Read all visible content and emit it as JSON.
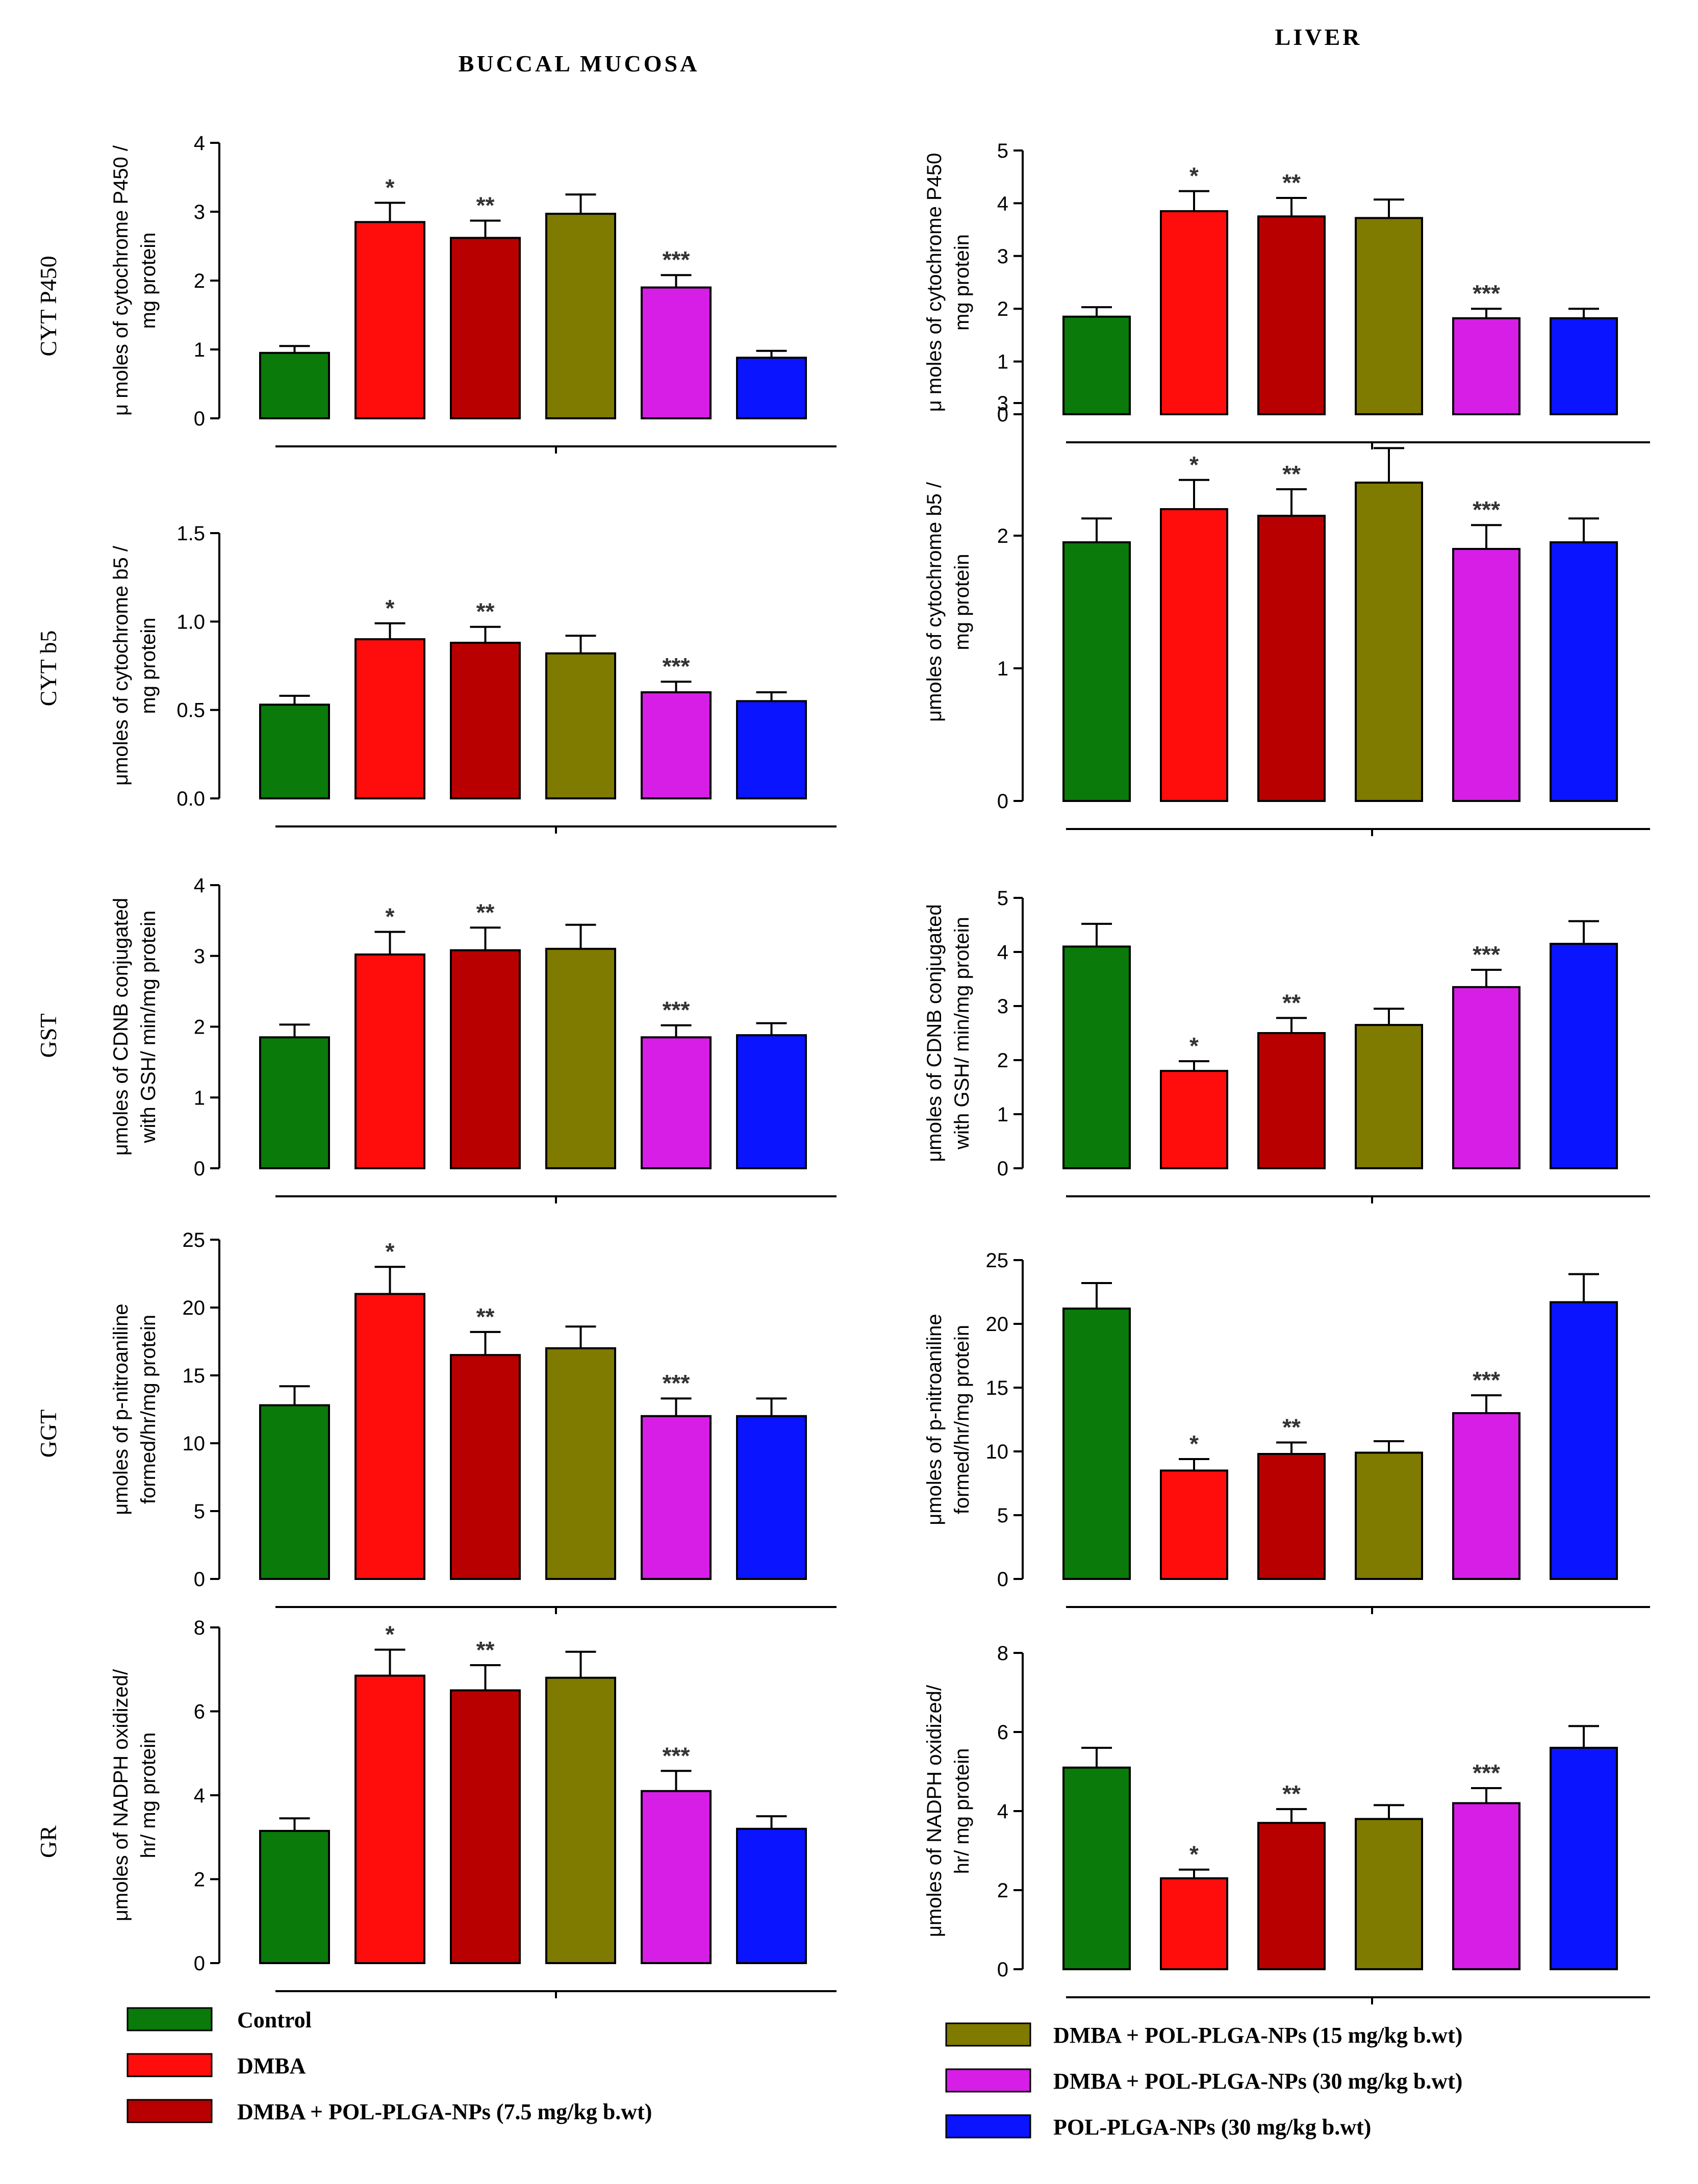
{
  "column_titles": [
    "BUCCAL MUCOSA",
    "LIVER"
  ],
  "groups": [
    "Control",
    "DMBA",
    "DMBA + POL-PLGA-NPs (7.5 mg/kg b.wt)",
    "DMBA + POL-PLGA-NPs (15 mg/kg b.wt)",
    "DMBA + POL-PLGA-NPs (30 mg/kg b.wt)",
    "POL-PLGA-NPs (30 mg/kg b.wt)"
  ],
  "colors": [
    "#0a7a0a",
    "#ff0d0d",
    "#b80000",
    "#7f7a00",
    "#d61ee6",
    "#0a14ff"
  ],
  "legend": [
    {
      "label": "Control",
      "color": "#0a7a0a"
    },
    {
      "label": "DMBA",
      "color": "#ff0d0d"
    },
    {
      "label": "DMBA + POL-PLGA-NPs (7.5 mg/kg b.wt)",
      "color": "#b80000"
    },
    {
      "label": "DMBA + POL-PLGA-NPs (15 mg/kg b.wt)",
      "color": "#7f7a00"
    },
    {
      "label": "DMBA + POL-PLGA-NPs (30 mg/kg b.wt)",
      "color": "#d61ee6"
    },
    {
      "label": "POL-PLGA-NPs (30 mg/kg b.wt)",
      "color": "#0a14ff"
    }
  ],
  "chart_data": [
    {
      "type": "bar",
      "row": 0,
      "col": 0,
      "row_label": "CYT P450",
      "ylabel": [
        "μ moles of cytochrome P450 /",
        "mg protein"
      ],
      "ylim": [
        0,
        4
      ],
      "ticks": [
        "0",
        "1",
        "2",
        "3",
        "4"
      ],
      "values": [
        0.95,
        2.85,
        2.62,
        2.97,
        1.9,
        0.88
      ],
      "errors": [
        0.1,
        0.28,
        0.25,
        0.28,
        0.18,
        0.1
      ],
      "annotations": [
        "",
        "*",
        "**",
        "",
        "***",
        ""
      ]
    },
    {
      "type": "bar",
      "row": 0,
      "col": 1,
      "row_label": "CYT P450",
      "ylabel": [
        "μ moles of cytochrome P450",
        "mg protein"
      ],
      "ylim": [
        0,
        5
      ],
      "ticks": [
        "0",
        "1",
        "2",
        "3",
        "4",
        "5"
      ],
      "values": [
        1.85,
        3.85,
        3.75,
        3.72,
        1.82,
        1.82
      ],
      "errors": [
        0.18,
        0.38,
        0.35,
        0.35,
        0.18,
        0.18
      ],
      "annotations": [
        "",
        "*",
        "**",
        "",
        "***",
        ""
      ]
    },
    {
      "type": "bar",
      "row": 1,
      "col": 0,
      "row_label": "CYT b5",
      "ylabel": [
        "μmoles of cytochrome b5 /",
        "mg protein"
      ],
      "ylim": [
        0,
        1.5
      ],
      "ticks": [
        "0.0",
        "0.5",
        "1.0",
        "1.5"
      ],
      "values": [
        0.53,
        0.9,
        0.88,
        0.82,
        0.6,
        0.55
      ],
      "errors": [
        0.05,
        0.09,
        0.09,
        0.1,
        0.06,
        0.05
      ],
      "annotations": [
        "",
        "*",
        "**",
        "",
        "***",
        ""
      ]
    },
    {
      "type": "bar",
      "row": 1,
      "col": 1,
      "row_label": "CYT b5",
      "ylabel": [
        "μmoles of cytochrome b5 /",
        "mg protein"
      ],
      "ylim": [
        0,
        3
      ],
      "ticks": [
        "0",
        "1",
        "2",
        "3"
      ],
      "values": [
        1.95,
        2.2,
        2.15,
        2.4,
        1.9,
        1.95
      ],
      "errors": [
        0.18,
        0.22,
        0.2,
        0.26,
        0.18,
        0.18
      ],
      "annotations": [
        "",
        "*",
        "**",
        "",
        "***",
        ""
      ]
    },
    {
      "type": "bar",
      "row": 2,
      "col": 0,
      "row_label": "GST",
      "ylabel": [
        "μmoles of CDNB conjugated",
        "with GSH/ min/mg protein"
      ],
      "ylim": [
        0,
        4
      ],
      "ticks": [
        "0",
        "1",
        "2",
        "3",
        "4"
      ],
      "values": [
        1.85,
        3.02,
        3.08,
        3.1,
        1.85,
        1.88
      ],
      "errors": [
        0.18,
        0.32,
        0.32,
        0.34,
        0.17,
        0.17
      ],
      "annotations": [
        "",
        "*",
        "**",
        "",
        "***",
        ""
      ]
    },
    {
      "type": "bar",
      "row": 2,
      "col": 1,
      "row_label": "GST",
      "ylabel": [
        "μmoles of CDNB conjugated",
        "with GSH/ min/mg protein"
      ],
      "ylim": [
        0,
        5
      ],
      "ticks": [
        "0",
        "1",
        "2",
        "3",
        "4",
        "5"
      ],
      "values": [
        4.1,
        1.8,
        2.5,
        2.65,
        3.35,
        4.15
      ],
      "errors": [
        0.42,
        0.18,
        0.28,
        0.3,
        0.32,
        0.42
      ],
      "annotations": [
        "",
        "*",
        "**",
        "",
        "***",
        ""
      ]
    },
    {
      "type": "bar",
      "row": 3,
      "col": 0,
      "row_label": "GGT",
      "ylabel": [
        "μmoles of p-nitroaniline",
        "formed/hr/mg protein"
      ],
      "ylim": [
        0,
        25
      ],
      "ticks": [
        "0",
        "5",
        "10",
        "15",
        "20",
        "25"
      ],
      "values": [
        12.8,
        21.0,
        16.5,
        17.0,
        12.0,
        12.0
      ],
      "errors": [
        1.4,
        2.0,
        1.7,
        1.6,
        1.3,
        1.3
      ],
      "annotations": [
        "",
        "*",
        "**",
        "",
        "***",
        ""
      ]
    },
    {
      "type": "bar",
      "row": 3,
      "col": 1,
      "row_label": "GGT",
      "ylabel": [
        "μmoles of p-nitroaniline",
        "formed/hr/mg protein"
      ],
      "ylim": [
        0,
        25
      ],
      "ticks": [
        "0",
        "5",
        "10",
        "15",
        "20",
        "25"
      ],
      "values": [
        21.2,
        8.5,
        9.8,
        9.9,
        13.0,
        21.7
      ],
      "errors": [
        2.0,
        0.9,
        0.9,
        0.9,
        1.4,
        2.2
      ],
      "annotations": [
        "",
        "*",
        "**",
        "",
        "***",
        ""
      ]
    },
    {
      "type": "bar",
      "row": 4,
      "col": 0,
      "row_label": "GR",
      "ylabel": [
        "μmoles of NADPH oxidized/",
        "hr/ mg protein"
      ],
      "ylim": [
        0,
        8
      ],
      "ticks": [
        "0",
        "2",
        "4",
        "6",
        "8"
      ],
      "values": [
        3.15,
        6.85,
        6.5,
        6.8,
        4.1,
        3.2
      ],
      "errors": [
        0.3,
        0.62,
        0.6,
        0.62,
        0.48,
        0.3
      ],
      "annotations": [
        "",
        "*",
        "**",
        "",
        "***",
        ""
      ]
    },
    {
      "type": "bar",
      "row": 4,
      "col": 1,
      "row_label": "GR",
      "ylabel": [
        "μmoles of NADPH oxidized/",
        "hr/ mg protein"
      ],
      "ylim": [
        0,
        8
      ],
      "ticks": [
        "0",
        "2",
        "4",
        "6",
        "8"
      ],
      "values": [
        5.1,
        2.3,
        3.7,
        3.8,
        4.2,
        5.6
      ],
      "errors": [
        0.5,
        0.22,
        0.35,
        0.35,
        0.38,
        0.55
      ],
      "annotations": [
        "",
        "*",
        "**",
        "",
        "***",
        ""
      ]
    }
  ]
}
